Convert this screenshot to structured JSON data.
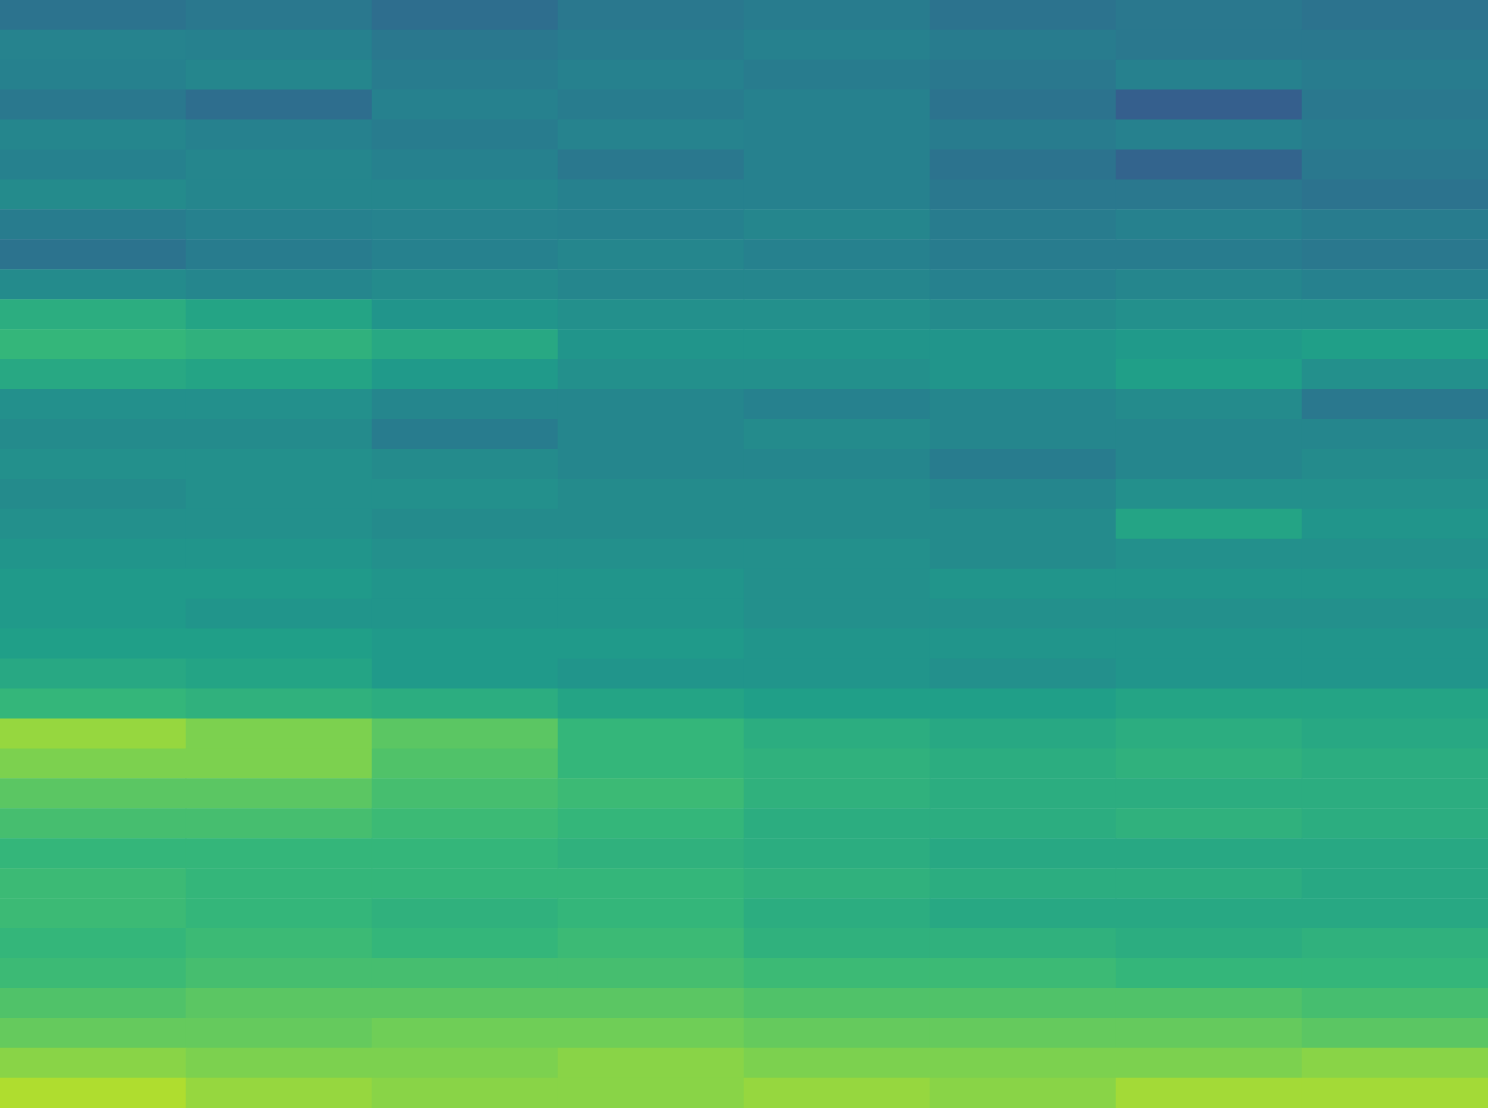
{
  "chart_data": {
    "type": "heatmap",
    "tick_labels": false,
    "value_range": [
      0,
      100
    ],
    "cells": [
      [
        38,
        40,
        36,
        40,
        42,
        38,
        40,
        38
      ],
      [
        45,
        44,
        40,
        42,
        44,
        42,
        40,
        40
      ],
      [
        44,
        46,
        42,
        44,
        42,
        40,
        44,
        42
      ],
      [
        40,
        36,
        44,
        42,
        44,
        38,
        30,
        40
      ],
      [
        46,
        44,
        42,
        45,
        44,
        42,
        44,
        42
      ],
      [
        44,
        46,
        44,
        40,
        44,
        38,
        32,
        40
      ],
      [
        48,
        46,
        46,
        44,
        44,
        40,
        40,
        38
      ],
      [
        42,
        44,
        45,
        44,
        46,
        42,
        44,
        42
      ],
      [
        38,
        42,
        44,
        46,
        44,
        42,
        42,
        40
      ],
      [
        48,
        46,
        48,
        46,
        46,
        44,
        46,
        44
      ],
      [
        62,
        58,
        52,
        50,
        50,
        48,
        50,
        50
      ],
      [
        66,
        64,
        60,
        52,
        52,
        52,
        54,
        56
      ],
      [
        60,
        58,
        54,
        50,
        50,
        52,
        56,
        50
      ],
      [
        50,
        50,
        46,
        46,
        44,
        46,
        48,
        40
      ],
      [
        48,
        48,
        42,
        46,
        48,
        46,
        46,
        46
      ],
      [
        50,
        50,
        48,
        46,
        46,
        42,
        46,
        48
      ],
      [
        48,
        50,
        50,
        48,
        48,
        46,
        50,
        50
      ],
      [
        50,
        50,
        48,
        48,
        48,
        48,
        58,
        52
      ],
      [
        52,
        52,
        50,
        50,
        50,
        48,
        50,
        50
      ],
      [
        54,
        54,
        52,
        52,
        50,
        52,
        52,
        52
      ],
      [
        54,
        52,
        52,
        52,
        50,
        50,
        50,
        50
      ],
      [
        56,
        56,
        54,
        54,
        52,
        52,
        52,
        52
      ],
      [
        60,
        58,
        54,
        52,
        52,
        50,
        52,
        52
      ],
      [
        66,
        64,
        62,
        58,
        56,
        56,
        58,
        58
      ],
      [
        84,
        80,
        74,
        66,
        62,
        60,
        62,
        60
      ],
      [
        80,
        80,
        72,
        66,
        64,
        62,
        64,
        62
      ],
      [
        74,
        74,
        70,
        68,
        64,
        62,
        62,
        62
      ],
      [
        70,
        70,
        68,
        66,
        62,
        62,
        64,
        62
      ],
      [
        66,
        66,
        66,
        64,
        62,
        60,
        60,
        60
      ],
      [
        68,
        66,
        66,
        66,
        64,
        62,
        62,
        60
      ],
      [
        68,
        66,
        64,
        66,
        62,
        60,
        60,
        60
      ],
      [
        66,
        68,
        66,
        68,
        64,
        64,
        62,
        64
      ],
      [
        68,
        70,
        70,
        70,
        68,
        68,
        66,
        66
      ],
      [
        72,
        74,
        74,
        74,
        72,
        72,
        72,
        70
      ],
      [
        76,
        76,
        78,
        78,
        76,
        76,
        76,
        74
      ],
      [
        82,
        80,
        80,
        82,
        80,
        80,
        80,
        82
      ],
      [
        88,
        84,
        82,
        82,
        84,
        82,
        86,
        86
      ]
    ]
  }
}
